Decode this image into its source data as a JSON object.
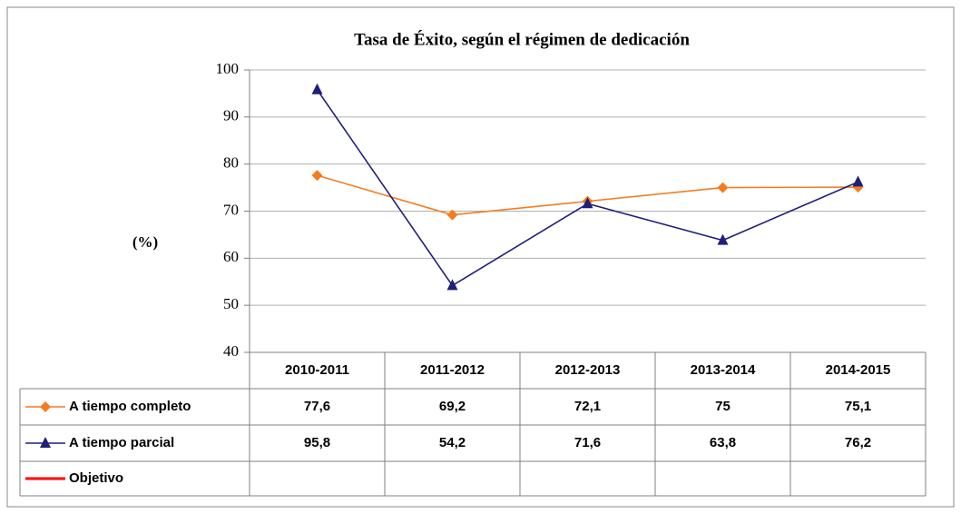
{
  "chart_data": {
    "type": "line",
    "title": "Tasa de Éxito, según el régimen de dedicación",
    "ylabel": "(%)",
    "categories": [
      "2010-2011",
      "2011-2012",
      "2012-2013",
      "2013-2014",
      "2014-2015"
    ],
    "series": [
      {
        "name": "A tiempo completo",
        "color": "#f47c20",
        "marker": "diamond",
        "values": [
          77.6,
          69.2,
          72.1,
          75,
          75.1
        ],
        "value_labels": [
          "77,6",
          "69,2",
          "72,1",
          "75",
          "75,1"
        ]
      },
      {
        "name": "A tiempo parcial",
        "color": "#1f1f7a",
        "marker": "triangle",
        "values": [
          95.8,
          54.2,
          71.6,
          63.8,
          76.2
        ],
        "value_labels": [
          "95,8",
          "54,2",
          "71,6",
          "63,8",
          "76,2"
        ]
      },
      {
        "name": "Objetivo",
        "color": "#ff0000",
        "marker": "none",
        "values": [
          null,
          null,
          null,
          null,
          null
        ]
      }
    ],
    "ylim": [
      40,
      100
    ],
    "yticks": [
      40,
      50,
      60,
      70,
      80,
      90,
      100
    ],
    "grid": true
  }
}
